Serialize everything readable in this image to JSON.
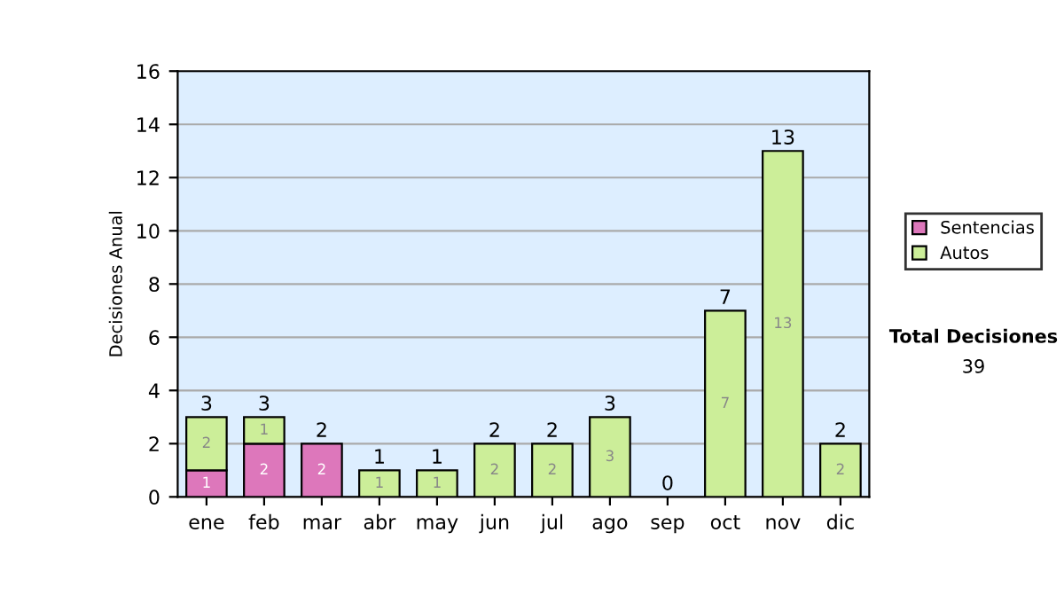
{
  "chart_data": {
    "type": "bar",
    "stacked": true,
    "ylabel": "Decisiones Anual",
    "categories": [
      "ene",
      "feb",
      "mar",
      "abr",
      "may",
      "jun",
      "jul",
      "ago",
      "sep",
      "oct",
      "nov",
      "dic"
    ],
    "series": [
      {
        "name": "Sentencias",
        "color": "#dd77bb",
        "values": [
          1,
          2,
          2,
          0,
          0,
          0,
          0,
          0,
          0,
          0,
          0,
          0
        ],
        "value_labels": [
          "1",
          "2",
          "2",
          null,
          null,
          null,
          null,
          null,
          null,
          null,
          null,
          null
        ]
      },
      {
        "name": "Autos",
        "color": "#ccee99",
        "values": [
          2,
          1,
          0,
          1,
          1,
          2,
          2,
          3,
          0,
          7,
          13,
          2
        ],
        "value_labels": [
          "2",
          "1",
          null,
          "1",
          "1",
          "2",
          "2",
          "3",
          null,
          "7",
          "13",
          "2"
        ]
      }
    ],
    "totals": [
      "3",
      "3",
      "2",
      "1",
      "1",
      "2",
      "2",
      "3",
      "0",
      "7",
      "13",
      "2"
    ],
    "ylim": [
      0,
      16
    ],
    "yticks": [
      0,
      2,
      4,
      6,
      8,
      10,
      12,
      14,
      16
    ],
    "grid": "y",
    "legend": "right",
    "annotations": [
      "Total Decisiones",
      "39"
    ]
  }
}
